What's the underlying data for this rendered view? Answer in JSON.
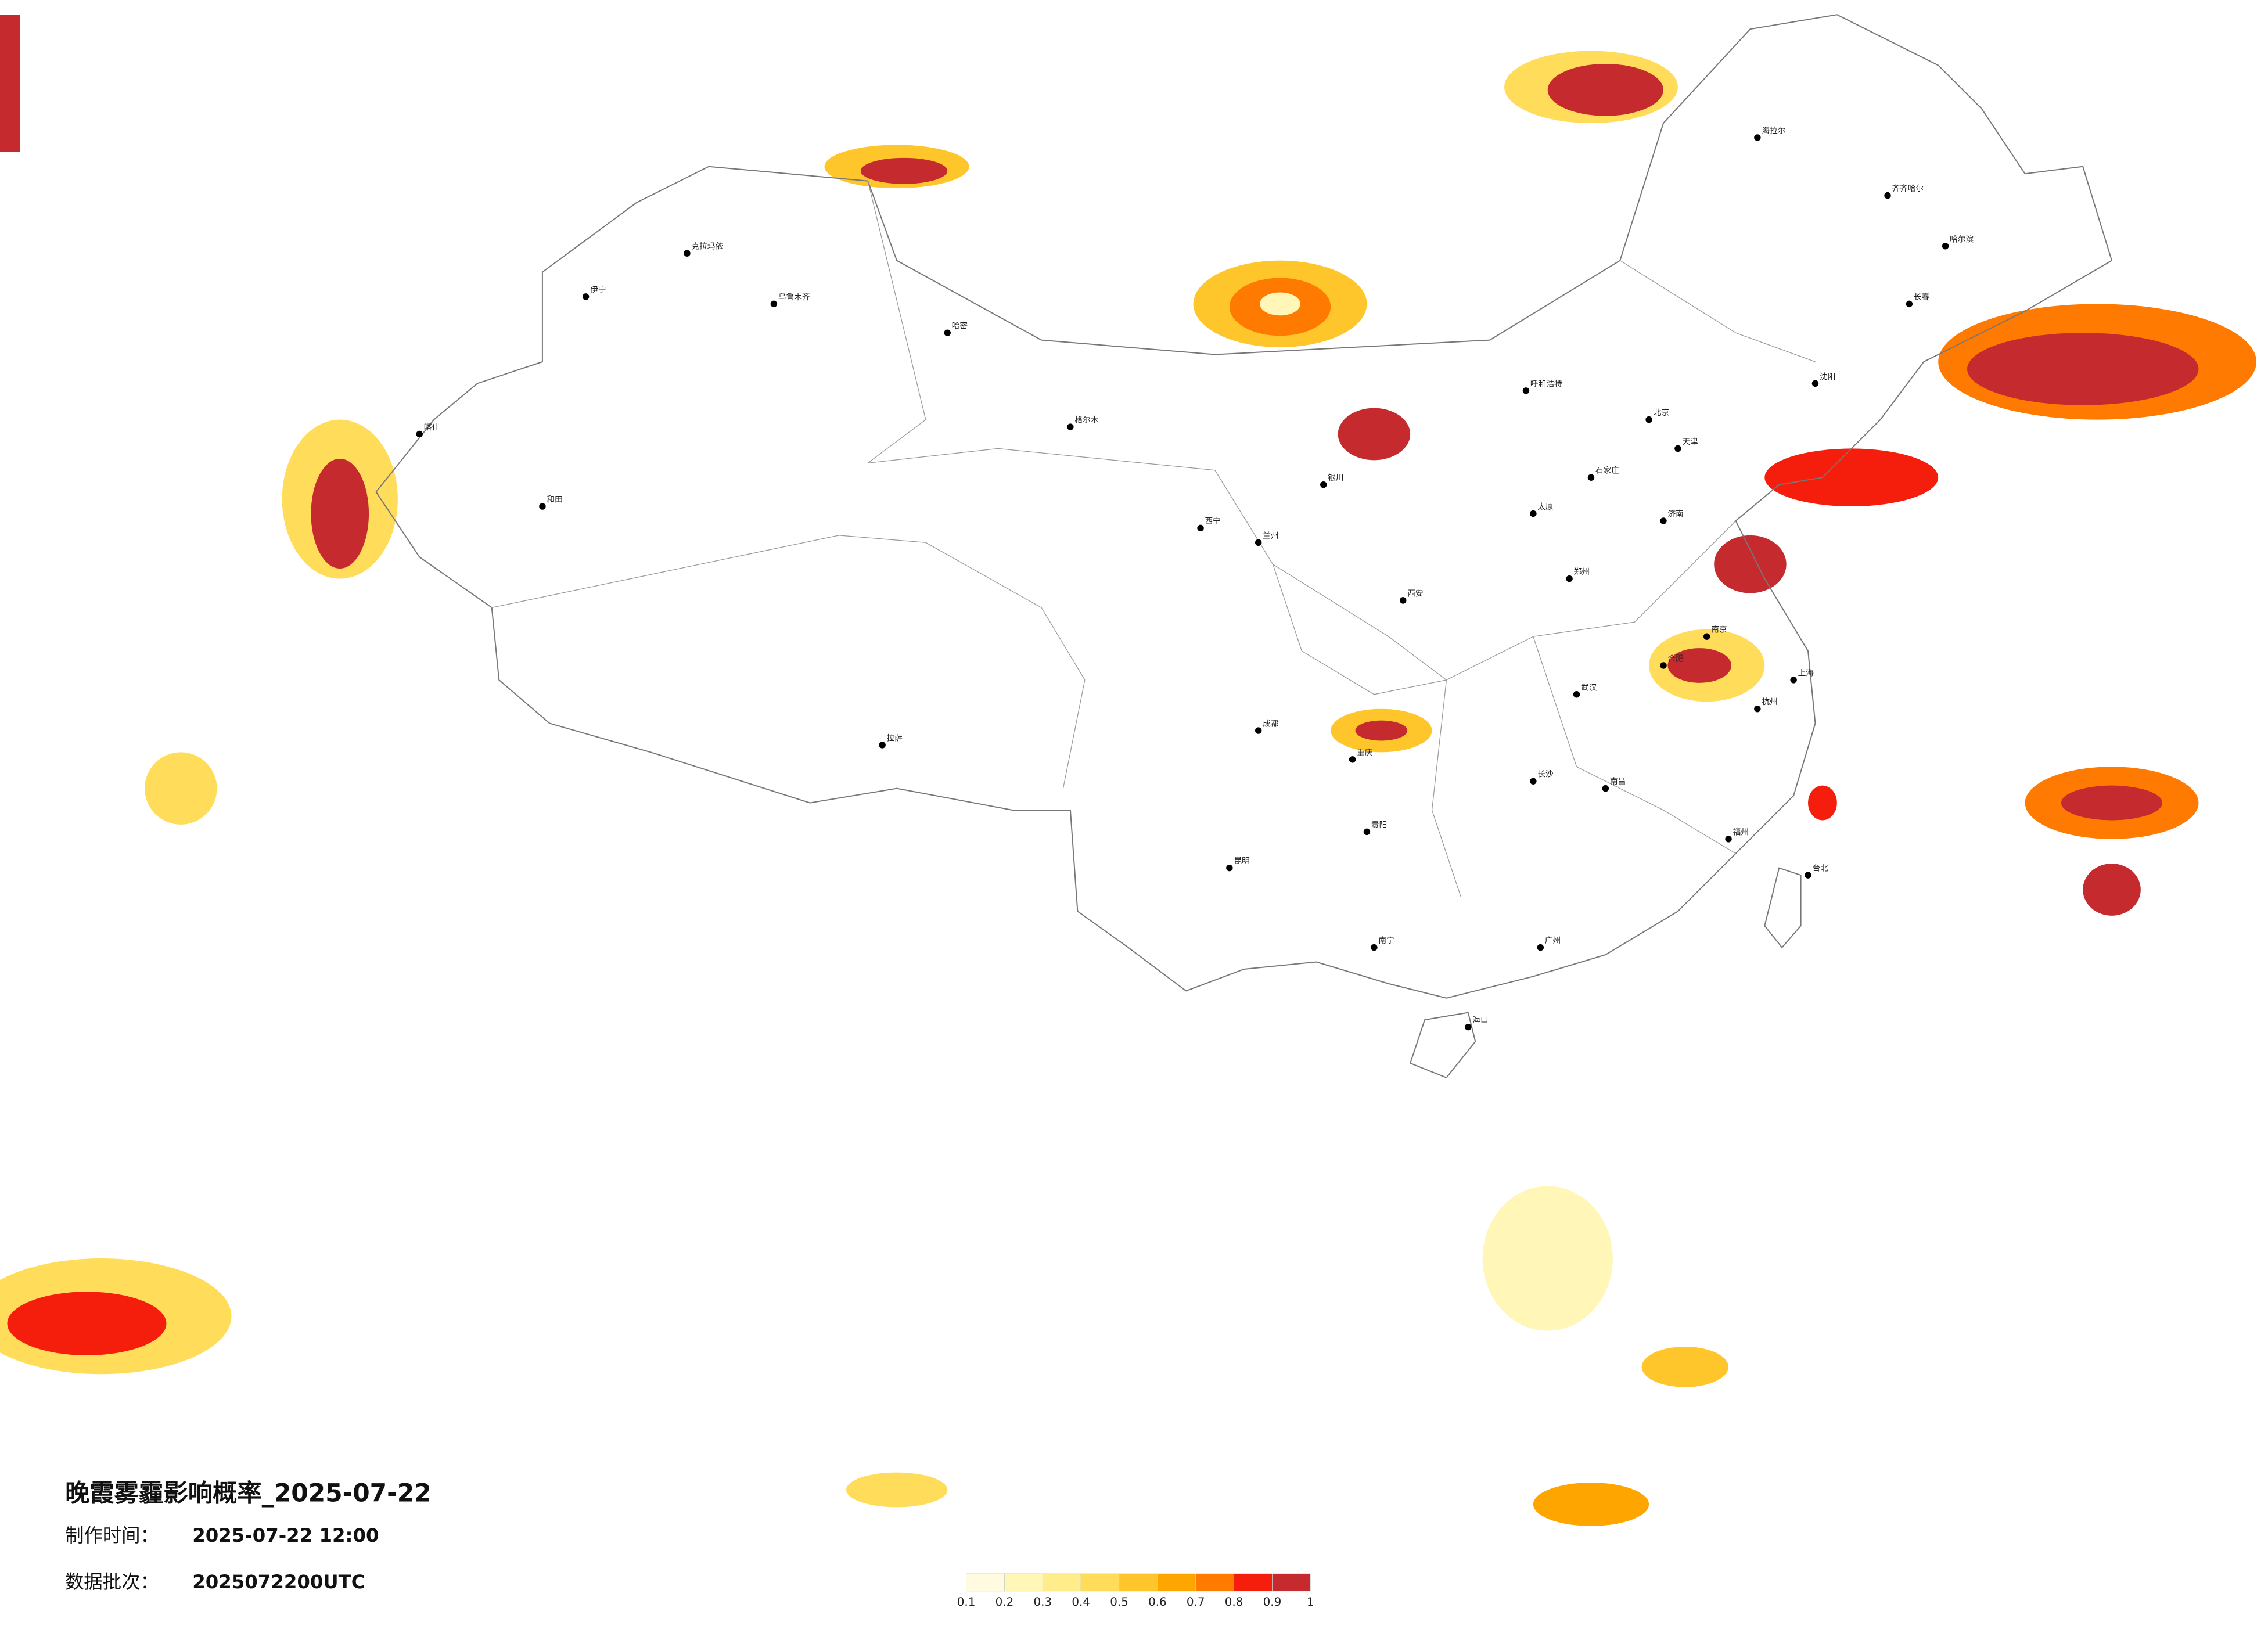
{
  "title": "晚霞雾霾影响概率_2025-07-22",
  "production_time": {
    "label": "制作时间：",
    "value": "2025-07-22 12:00"
  },
  "data_batch": {
    "label": "数据批次：",
    "value": "2025072200UTC"
  },
  "legend": {
    "colors": [
      "#fffbe0",
      "#fff6b8",
      "#ffec8a",
      "#ffdc5a",
      "#ffc62b",
      "#ffa500",
      "#ff7a00",
      "#f51e0c",
      "#c42a2e"
    ],
    "ticks": [
      0.1,
      0.2,
      0.3,
      0.4,
      0.5,
      0.6,
      0.7,
      0.8,
      0.9,
      1
    ]
  },
  "cities": [
    "北京",
    "天津",
    "石家庄",
    "太原",
    "呼和浩特",
    "沈阳",
    "长春",
    "哈尔滨",
    "济南",
    "郑州",
    "西安",
    "兰州",
    "西宁",
    "银川",
    "乌鲁木齐",
    "拉萨",
    "成都",
    "重庆",
    "贵阳",
    "昆明",
    "南宁",
    "广州",
    "福州",
    "南昌",
    "长沙",
    "武汉",
    "合肥",
    "南京",
    "上海",
    "杭州",
    "台北",
    "海口",
    "喀什",
    "和田",
    "伊宁",
    "克拉玛依",
    "哈密",
    "格尔木",
    "海拉尔",
    "齐齐哈尔"
  ]
}
